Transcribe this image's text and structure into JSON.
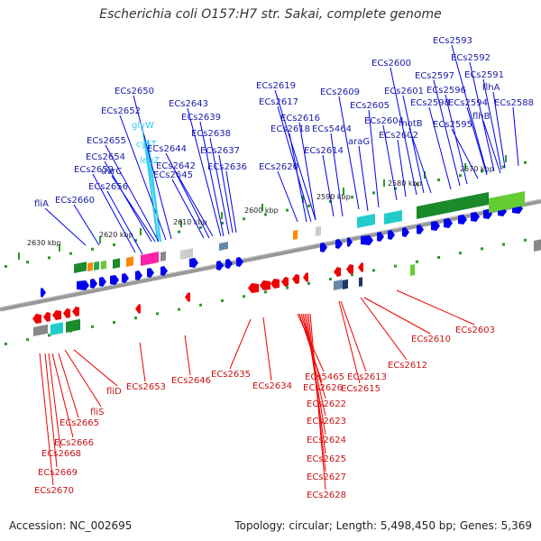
{
  "title": "Escherichia coli O157:H7 str. Sakai, complete genome",
  "accession": "Accession: NC_002695",
  "summary": "Topology: circular; Length: 5,498,450 bp; Genes: 5,369",
  "colors": {
    "backbone": "#888888",
    "forward_gene": "#0000ee",
    "reverse_gene": "#ee0000",
    "forward_label": "#1a1aa8",
    "reverse_label": "#c81414",
    "trna": "#33ccee",
    "tick": "#2a9a2a"
  },
  "kbp_ticks": [
    "2630 kbp",
    "2620 kbp",
    "2610 kbp",
    "2600 kbp",
    "2590 kbp",
    "2580 kbp",
    "2570 kbp"
  ],
  "forward_labels": [
    "ECs2650",
    "ECs2652",
    "glyW",
    "ECs2655",
    "cysT",
    "ECs2654",
    "leuZ",
    "uvrC",
    "ECs2659",
    "ECs2656",
    "fliA",
    "ECs2660",
    "ECs2643",
    "ECs2639",
    "ECs2638",
    "ECs2644",
    "ECs2637",
    "ECs2642",
    "ECs2645",
    "ECs2636",
    "ECs2619",
    "ECs2617",
    "ECs2616",
    "ECs2618",
    "ECs2620",
    "ECs2609",
    "ECs5464",
    "ECs2614",
    "araG",
    "ECs2605",
    "ECs2600",
    "ECs2601",
    "ECs2604",
    "ECs2602",
    "ECs2597",
    "ECs2598",
    "motB",
    "ECs2596",
    "ECs2593",
    "ECs2592",
    "ECs2591",
    "flhA",
    "ECs2594",
    "ECs2588",
    "flhB",
    "ECs2595"
  ],
  "reverse_labels": [
    "fliD",
    "ECs2653",
    "fliS",
    "ECs2665",
    "ECs2666",
    "ECs2668",
    "ECs2669",
    "ECs2670",
    "ECs2646",
    "ECs2635",
    "ECs2634",
    "ECs5465",
    "ECs2626",
    "ECs2622",
    "ECs2623",
    "ECs2624",
    "ECs2625",
    "ECs2627",
    "ECs2628",
    "ECs2613",
    "ECs2615",
    "ECs2612",
    "ECs2610",
    "ECs2603"
  ]
}
